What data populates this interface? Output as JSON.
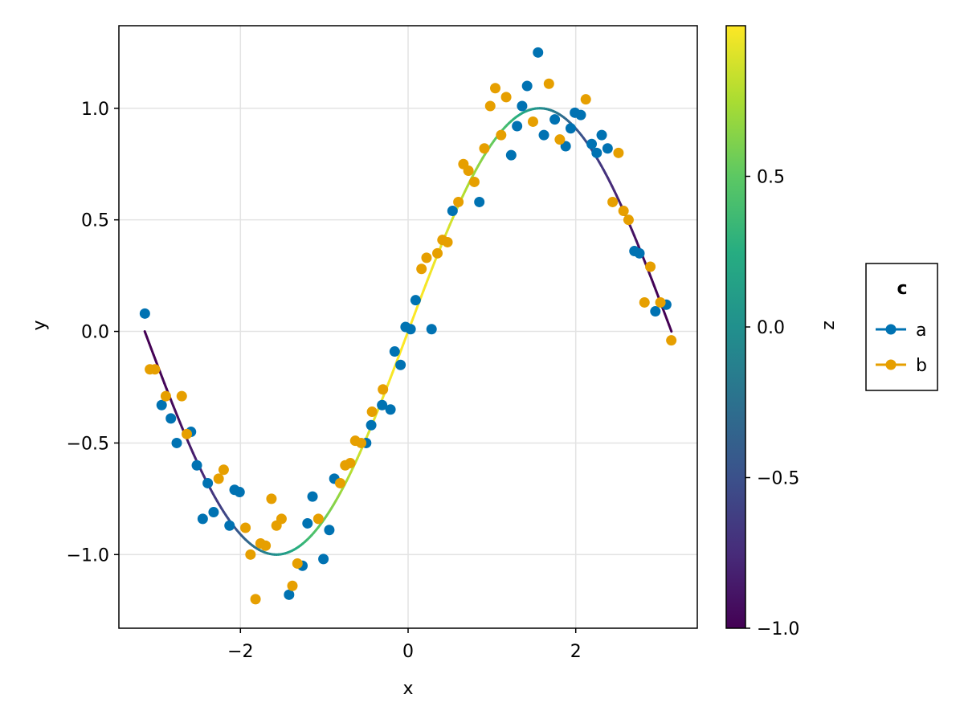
{
  "chart_data": {
    "type": "scatter",
    "title": "",
    "xlabel": "x",
    "ylabel": "y",
    "xlim": [
      -3.45,
      3.45
    ],
    "ylim": [
      -1.33,
      1.37
    ],
    "grid": true,
    "x_ticks": [
      -2,
      0,
      2
    ],
    "y_ticks": [
      -1.0,
      -0.5,
      0.0,
      0.5,
      1.0
    ],
    "x_tick_labels": [
      "−2",
      "0",
      "2"
    ],
    "y_tick_labels": [
      "−1.0",
      "−0.5",
      "0.0",
      "0.5",
      "1.0"
    ],
    "line": {
      "function": "sin(x)",
      "x_range": [
        -3.14159,
        3.14159
      ],
      "colored_by": "z"
    },
    "series": [
      {
        "name": "a",
        "color": "#0072b2",
        "points": [
          [
            -3.14,
            0.08
          ],
          [
            -2.94,
            -0.33
          ],
          [
            -2.83,
            -0.39
          ],
          [
            -2.76,
            -0.5
          ],
          [
            -2.59,
            -0.45
          ],
          [
            -2.52,
            -0.6
          ],
          [
            -2.45,
            -0.84
          ],
          [
            -2.39,
            -0.68
          ],
          [
            -2.32,
            -0.81
          ],
          [
            -2.13,
            -0.87
          ],
          [
            -2.07,
            -0.71
          ],
          [
            -2.01,
            -0.72
          ],
          [
            -1.26,
            -1.05
          ],
          [
            -1.2,
            -0.86
          ],
          [
            -1.14,
            -0.74
          ],
          [
            -1.42,
            -1.18
          ],
          [
            -1.01,
            -1.02
          ],
          [
            -0.94,
            -0.89
          ],
          [
            -0.88,
            -0.66
          ],
          [
            -0.5,
            -0.5
          ],
          [
            -0.44,
            -0.42
          ],
          [
            -0.31,
            -0.33
          ],
          [
            -0.21,
            -0.35
          ],
          [
            -0.16,
            -0.09
          ],
          [
            -0.09,
            -0.15
          ],
          [
            -0.03,
            0.02
          ],
          [
            0.03,
            0.01
          ],
          [
            0.09,
            0.14
          ],
          [
            0.28,
            0.01
          ],
          [
            0.53,
            0.54
          ],
          [
            0.85,
            0.58
          ],
          [
            1.23,
            0.79
          ],
          [
            1.3,
            0.92
          ],
          [
            1.36,
            1.01
          ],
          [
            1.42,
            1.1
          ],
          [
            1.55,
            1.25
          ],
          [
            1.62,
            0.88
          ],
          [
            1.75,
            0.95
          ],
          [
            1.88,
            0.83
          ],
          [
            1.94,
            0.91
          ],
          [
            1.99,
            0.98
          ],
          [
            2.06,
            0.97
          ],
          [
            2.19,
            0.84
          ],
          [
            2.25,
            0.8
          ],
          [
            2.31,
            0.88
          ],
          [
            2.38,
            0.82
          ],
          [
            2.7,
            0.36
          ],
          [
            2.76,
            0.35
          ],
          [
            2.95,
            0.09
          ],
          [
            3.08,
            0.12
          ]
        ]
      },
      {
        "name": "b",
        "color": "#e69f00",
        "points": [
          [
            -3.08,
            -0.17
          ],
          [
            -3.02,
            -0.17
          ],
          [
            -2.89,
            -0.29
          ],
          [
            -2.7,
            -0.29
          ],
          [
            -2.64,
            -0.46
          ],
          [
            -2.26,
            -0.66
          ],
          [
            -2.2,
            -0.62
          ],
          [
            -1.94,
            -0.88
          ],
          [
            -1.88,
            -1.0
          ],
          [
            -1.82,
            -1.2
          ],
          [
            -1.76,
            -0.95
          ],
          [
            -1.7,
            -0.96
          ],
          [
            -1.63,
            -0.75
          ],
          [
            -1.57,
            -0.87
          ],
          [
            -1.51,
            -0.84
          ],
          [
            -1.38,
            -1.14
          ],
          [
            -1.32,
            -1.04
          ],
          [
            -1.07,
            -0.84
          ],
          [
            -0.81,
            -0.68
          ],
          [
            -0.75,
            -0.6
          ],
          [
            -0.69,
            -0.59
          ],
          [
            -0.63,
            -0.49
          ],
          [
            -0.56,
            -0.5
          ],
          [
            -0.43,
            -0.36
          ],
          [
            -0.3,
            -0.26
          ],
          [
            0.16,
            0.28
          ],
          [
            0.22,
            0.33
          ],
          [
            0.35,
            0.35
          ],
          [
            0.41,
            0.41
          ],
          [
            0.47,
            0.4
          ],
          [
            0.6,
            0.58
          ],
          [
            0.66,
            0.75
          ],
          [
            0.72,
            0.72
          ],
          [
            0.79,
            0.67
          ],
          [
            0.91,
            0.82
          ],
          [
            0.98,
            1.01
          ],
          [
            1.04,
            1.09
          ],
          [
            1.11,
            0.88
          ],
          [
            1.17,
            1.05
          ],
          [
            1.49,
            0.94
          ],
          [
            1.68,
            1.11
          ],
          [
            1.81,
            0.86
          ],
          [
            2.12,
            1.04
          ],
          [
            2.44,
            0.58
          ],
          [
            2.51,
            0.8
          ],
          [
            2.57,
            0.54
          ],
          [
            2.63,
            0.5
          ],
          [
            2.82,
            0.13
          ],
          [
            2.89,
            0.29
          ],
          [
            3.01,
            0.13
          ],
          [
            3.14,
            -0.04
          ]
        ]
      }
    ],
    "colorbar": {
      "label": "z",
      "range": [
        -1.0,
        1.0
      ],
      "ticks": [
        -1.0,
        -0.5,
        0.0,
        0.5
      ],
      "tick_labels": [
        "−1.0",
        "−0.5",
        "0.0",
        "0.5"
      ],
      "colormap": "viridis"
    },
    "legend": {
      "title": "c",
      "placement": "right",
      "entries": [
        "a",
        "b"
      ]
    }
  }
}
